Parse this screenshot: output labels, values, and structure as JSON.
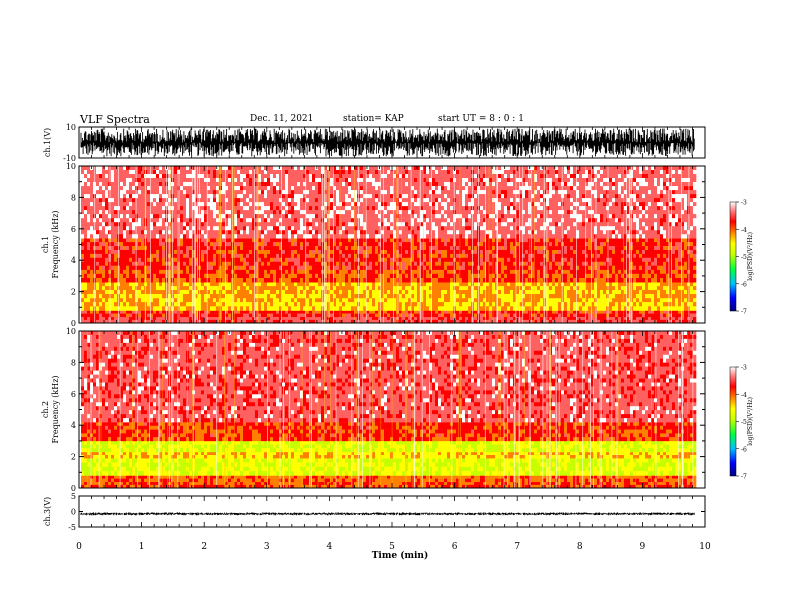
{
  "header": {
    "title": "VLF Spectra",
    "date": "Dec. 11, 2021",
    "station": "station= KAP",
    "start": "start  UT =   8 : 0  : 1"
  },
  "colors": {
    "colormap": [
      "#0000a0",
      "#0000ff",
      "#00c8ff",
      "#00ff40",
      "#c8ff00",
      "#ffff00",
      "#ff8000",
      "#ff0000",
      "#ff6060",
      "#ffffff"
    ],
    "waveform": "#000000"
  },
  "chart_data": [
    {
      "type": "line",
      "name": "ch1-waveform",
      "ylabel": "ch.1(V)",
      "ylim": [
        -10,
        10
      ],
      "yticks": [
        "10",
        "-10"
      ],
      "xlim": [
        0,
        10
      ],
      "x_end": 9.83,
      "amplitude_range": [
        -9,
        9
      ]
    },
    {
      "type": "heatmap",
      "name": "ch1-spectrogram",
      "ylabel": "ch.1\nFrequency (kHz)",
      "ylim": [
        0,
        10
      ],
      "yticks": [
        "0",
        "2",
        "4",
        "6",
        "8",
        "10"
      ],
      "xlim": [
        0,
        10
      ],
      "x_end": 9.83,
      "colorbar": {
        "label": "log(PSD)(V²/Hz)",
        "range": [
          -7,
          -3
        ],
        "ticks": [
          "-3",
          "-4",
          "-5",
          "-6",
          "-7"
        ]
      },
      "bands": [
        {
          "f": [
            0,
            0.4
          ],
          "level": -3.6
        },
        {
          "f": [
            0.4,
            0.8
          ],
          "level": -3.9
        },
        {
          "f": [
            0.8,
            1.6
          ],
          "level": -4.6
        },
        {
          "f": [
            1.6,
            2.6
          ],
          "level": -4.5
        },
        {
          "f": [
            2.6,
            3.4
          ],
          "level": -4.1
        },
        {
          "f": [
            3.4,
            5.4
          ],
          "level": -3.9
        },
        {
          "f": [
            5.4,
            10
          ],
          "level": -3.4
        }
      ]
    },
    {
      "type": "heatmap",
      "name": "ch2-spectrogram",
      "ylabel": "ch.2\nFrequency (kHz)",
      "ylim": [
        0,
        10
      ],
      "yticks": [
        "0",
        "2",
        "4",
        "6",
        "8",
        "10"
      ],
      "xlim": [
        0,
        10
      ],
      "x_end": 9.83,
      "colorbar": {
        "label": "log(PSD)(V²/Hz)",
        "range": [
          -7,
          -3
        ],
        "ticks": [
          "-3",
          "-4",
          "-5",
          "-6",
          "-7"
        ]
      },
      "bands": [
        {
          "f": [
            0,
            0.4
          ],
          "level": -4.1
        },
        {
          "f": [
            0.4,
            0.8
          ],
          "level": -4.2
        },
        {
          "f": [
            0.8,
            1.9
          ],
          "level": -5.0
        },
        {
          "f": [
            1.9,
            2.3
          ],
          "level": -4.6
        },
        {
          "f": [
            2.3,
            3.0
          ],
          "level": -5.0
        },
        {
          "f": [
            3.0,
            4.2
          ],
          "level": -4.0
        },
        {
          "f": [
            4.2,
            10
          ],
          "level": -3.5
        }
      ]
    },
    {
      "type": "line",
      "name": "ch3-waveform",
      "ylabel": "ch.3(V)",
      "ylim": [
        -5,
        5
      ],
      "yticks": [
        "5",
        "0",
        "-5"
      ],
      "xlim": [
        0,
        10
      ],
      "x_end": 9.83,
      "amplitude_range": [
        -1.2,
        -0.3
      ]
    }
  ],
  "xaxis": {
    "label": "Time (min)",
    "ticks": [
      "0",
      "1",
      "2",
      "3",
      "4",
      "5",
      "6",
      "7",
      "8",
      "9",
      "10"
    ]
  }
}
